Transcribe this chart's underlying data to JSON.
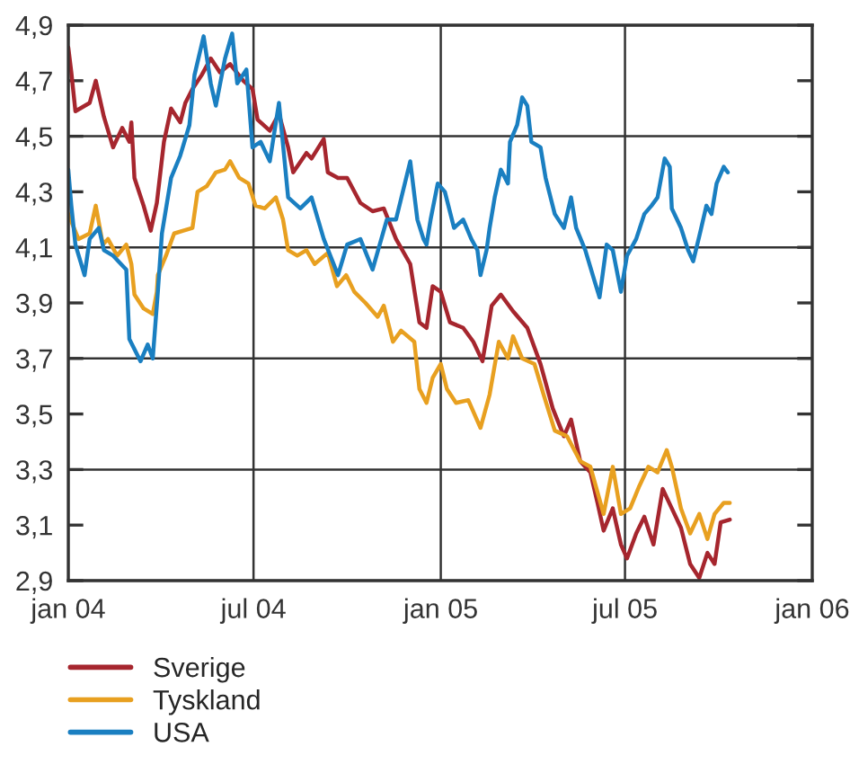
{
  "chart_data": {
    "type": "line",
    "xlim": [
      "2004-01-01",
      "2006-01-01"
    ],
    "xticks": [
      {
        "value": "2004-01-01",
        "label": "jan 04"
      },
      {
        "value": "2004-07-01",
        "label": "jul 04"
      },
      {
        "value": "2005-01-01",
        "label": "jan 05"
      },
      {
        "value": "2005-07-01",
        "label": "jul 05"
      },
      {
        "value": "2006-01-01",
        "label": "jan 06"
      }
    ],
    "ylim": [
      2.9,
      4.9
    ],
    "yticks": [
      {
        "value": 2.9,
        "label": "2,9"
      },
      {
        "value": 3.1,
        "label": "3,1"
      },
      {
        "value": 3.3,
        "label": "3,3"
      },
      {
        "value": 3.5,
        "label": "3,5"
      },
      {
        "value": 3.7,
        "label": "3,7"
      },
      {
        "value": 3.9,
        "label": "3,9"
      },
      {
        "value": 4.1,
        "label": "4,1"
      },
      {
        "value": 4.3,
        "label": "4,3"
      },
      {
        "value": 4.5,
        "label": "4,5"
      },
      {
        "value": 4.7,
        "label": "4,7"
      },
      {
        "value": 4.9,
        "label": "4,9"
      }
    ],
    "grid": true,
    "legend": "bottom left",
    "marker": "none",
    "line_style": "solid",
    "series": [
      {
        "name": "Sverige",
        "color": "#a6262e",
        "x": [
          "2004-01-01",
          "2004-01-04",
          "2004-01-08",
          "2004-01-22",
          "2004-01-28",
          "2004-02-05",
          "2004-02-14",
          "2004-02-23",
          "2004-03-01",
          "2004-03-03",
          "2004-03-06",
          "2004-03-15",
          "2004-03-22",
          "2004-03-28",
          "2004-04-04",
          "2004-04-11",
          "2004-04-20",
          "2004-04-25",
          "2004-05-02",
          "2004-05-11",
          "2004-05-20",
          "2004-05-29",
          "2004-06-08",
          "2004-06-21",
          "2004-06-30",
          "2004-07-05",
          "2004-07-17",
          "2004-07-26",
          "2004-08-04",
          "2004-08-09",
          "2004-08-22",
          "2004-08-27",
          "2004-09-08",
          "2004-09-12",
          "2004-09-22",
          "2004-10-01",
          "2004-10-14",
          "2004-10-26",
          "2004-11-06",
          "2004-11-18",
          "2004-12-02",
          "2004-12-11",
          "2004-12-18",
          "2004-12-24",
          "2005-01-01",
          "2005-01-10",
          "2005-01-23",
          "2005-02-02",
          "2005-02-11",
          "2005-02-20",
          "2005-03-01",
          "2005-03-13",
          "2005-03-27",
          "2005-04-09",
          "2005-04-21",
          "2005-05-02",
          "2005-05-09",
          "2005-05-18",
          "2005-05-28",
          "2005-06-04",
          "2005-06-10",
          "2005-06-19",
          "2005-06-27",
          "2005-07-03",
          "2005-07-12",
          "2005-07-20",
          "2005-07-29",
          "2005-08-07",
          "2005-08-16",
          "2005-08-25",
          "2005-09-03",
          "2005-09-12",
          "2005-09-20",
          "2005-09-27",
          "2005-10-03",
          "2005-10-12"
        ],
        "values": [
          4.82,
          4.73,
          4.59,
          4.62,
          4.7,
          4.57,
          4.46,
          4.53,
          4.48,
          4.55,
          4.35,
          4.25,
          4.16,
          4.26,
          4.48,
          4.6,
          4.55,
          4.62,
          4.67,
          4.72,
          4.78,
          4.73,
          4.76,
          4.7,
          4.67,
          4.56,
          4.52,
          4.58,
          4.46,
          4.37,
          4.44,
          4.42,
          4.49,
          4.37,
          4.35,
          4.35,
          4.26,
          4.23,
          4.24,
          4.13,
          4.04,
          3.83,
          3.81,
          3.96,
          3.94,
          3.83,
          3.81,
          3.76,
          3.69,
          3.89,
          3.93,
          3.87,
          3.81,
          3.68,
          3.52,
          3.42,
          3.48,
          3.33,
          3.29,
          3.18,
          3.08,
          3.16,
          3.03,
          2.98,
          3.07,
          3.13,
          3.03,
          3.23,
          3.16,
          3.09,
          2.96,
          2.91,
          3.0,
          2.96,
          3.11,
          3.12
        ]
      },
      {
        "name": "Tyskland",
        "color": "#e8a020",
        "x": [
          "2004-01-01",
          "2004-01-11",
          "2004-01-22",
          "2004-01-28",
          "2004-02-04",
          "2004-02-09",
          "2004-02-18",
          "2004-02-27",
          "2004-03-03",
          "2004-03-06",
          "2004-03-15",
          "2004-03-24",
          "2004-03-28",
          "2004-03-29",
          "2004-04-06",
          "2004-04-14",
          "2004-04-23",
          "2004-05-02",
          "2004-05-07",
          "2004-05-16",
          "2004-05-25",
          "2004-06-03",
          "2004-06-08",
          "2004-06-17",
          "2004-06-26",
          "2004-07-03",
          "2004-07-12",
          "2004-07-23",
          "2004-07-30",
          "2004-08-04",
          "2004-08-13",
          "2004-08-22",
          "2004-08-30",
          "2004-09-12",
          "2004-09-21",
          "2004-09-30",
          "2004-10-08",
          "2004-10-19",
          "2004-10-31",
          "2004-11-06",
          "2004-11-15",
          "2004-11-23",
          "2004-12-06",
          "2004-12-11",
          "2004-12-18",
          "2004-12-24",
          "2005-01-01",
          "2005-01-07",
          "2005-01-16",
          "2005-01-28",
          "2005-02-09",
          "2005-02-18",
          "2005-02-27",
          "2005-03-08",
          "2005-03-13",
          "2005-03-22",
          "2005-04-03",
          "2005-04-12",
          "2005-04-23",
          "2005-05-05",
          "2005-05-18",
          "2005-05-28",
          "2005-06-10",
          "2005-06-19",
          "2005-06-27",
          "2005-07-06",
          "2005-07-15",
          "2005-07-24",
          "2005-08-02",
          "2005-08-11",
          "2005-08-16",
          "2005-08-25",
          "2005-09-03",
          "2005-09-12",
          "2005-09-20",
          "2005-09-27",
          "2005-10-06",
          "2005-10-12"
        ],
        "values": [
          4.22,
          4.13,
          4.15,
          4.25,
          4.11,
          4.13,
          4.07,
          4.11,
          4.04,
          3.93,
          3.88,
          3.86,
          3.94,
          4.0,
          4.07,
          4.15,
          4.16,
          4.17,
          4.3,
          4.32,
          4.37,
          4.38,
          4.41,
          4.35,
          4.33,
          4.25,
          4.24,
          4.28,
          4.2,
          4.09,
          4.07,
          4.09,
          4.04,
          4.08,
          3.96,
          4.0,
          3.94,
          3.9,
          3.85,
          3.89,
          3.76,
          3.8,
          3.76,
          3.59,
          3.54,
          3.63,
          3.68,
          3.59,
          3.54,
          3.55,
          3.45,
          3.57,
          3.76,
          3.7,
          3.78,
          3.7,
          3.68,
          3.57,
          3.44,
          3.42,
          3.33,
          3.31,
          3.14,
          3.31,
          3.14,
          3.16,
          3.24,
          3.31,
          3.29,
          3.37,
          3.31,
          3.16,
          3.07,
          3.14,
          3.05,
          3.14,
          3.18,
          3.18
        ]
      },
      {
        "name": "USA",
        "color": "#1a7fc1",
        "x": [
          "2004-01-01",
          "2004-01-04",
          "2004-01-08",
          "2004-01-17",
          "2004-01-22",
          "2004-01-31",
          "2004-02-05",
          "2004-02-14",
          "2004-02-27",
          "2004-03-01",
          "2004-03-12",
          "2004-03-19",
          "2004-03-24",
          "2004-03-29",
          "2004-04-02",
          "2004-04-11",
          "2004-04-20",
          "2004-04-29",
          "2004-05-04",
          "2004-05-13",
          "2004-05-20",
          "2004-05-25",
          "2004-06-03",
          "2004-06-10",
          "2004-06-15",
          "2004-06-24",
          "2004-06-30",
          "2004-07-08",
          "2004-07-17",
          "2004-07-26",
          "2004-08-04",
          "2004-08-16",
          "2004-08-27",
          "2004-09-08",
          "2004-09-22",
          "2004-10-01",
          "2004-10-14",
          "2004-10-26",
          "2004-11-09",
          "2004-11-18",
          "2004-12-02",
          "2004-12-09",
          "2004-12-15",
          "2004-12-18",
          "2004-12-22",
          "2004-12-29",
          "2005-01-05",
          "2005-01-14",
          "2005-01-23",
          "2005-01-31",
          "2005-02-06",
          "2005-02-09",
          "2005-02-15",
          "2005-02-18",
          "2005-02-23",
          "2005-03-01",
          "2005-03-08",
          "2005-03-10",
          "2005-03-17",
          "2005-03-22",
          "2005-03-27",
          "2005-03-31",
          "2005-04-09",
          "2005-04-14",
          "2005-04-23",
          "2005-05-02",
          "2005-05-09",
          "2005-05-14",
          "2005-05-23",
          "2005-06-01",
          "2005-06-06",
          "2005-06-13",
          "2005-06-19",
          "2005-06-27",
          "2005-07-03",
          "2005-07-12",
          "2005-07-20",
          "2005-07-27",
          "2005-08-02",
          "2005-08-09",
          "2005-08-14",
          "2005-08-16",
          "2005-08-25",
          "2005-09-01",
          "2005-09-06",
          "2005-09-12",
          "2005-09-19",
          "2005-09-24",
          "2005-09-29",
          "2005-10-06",
          "2005-10-10"
        ],
        "values": [
          4.38,
          4.25,
          4.11,
          4.0,
          4.13,
          4.17,
          4.09,
          4.07,
          4.02,
          3.77,
          3.69,
          3.75,
          3.7,
          3.94,
          4.15,
          4.35,
          4.43,
          4.54,
          4.72,
          4.86,
          4.69,
          4.61,
          4.78,
          4.87,
          4.69,
          4.74,
          4.46,
          4.48,
          4.41,
          4.62,
          4.28,
          4.24,
          4.28,
          4.13,
          4.0,
          4.11,
          4.13,
          4.02,
          4.2,
          4.2,
          4.41,
          4.2,
          4.13,
          4.11,
          4.2,
          4.33,
          4.3,
          4.17,
          4.2,
          4.13,
          4.09,
          4.0,
          4.09,
          4.17,
          4.28,
          4.38,
          4.33,
          4.48,
          4.54,
          4.64,
          4.61,
          4.48,
          4.46,
          4.35,
          4.22,
          4.17,
          4.28,
          4.17,
          4.09,
          3.98,
          3.92,
          4.11,
          4.09,
          3.94,
          4.07,
          4.13,
          4.22,
          4.25,
          4.28,
          4.42,
          4.39,
          4.24,
          4.17,
          4.09,
          4.05,
          4.14,
          4.25,
          4.22,
          4.33,
          4.39,
          4.37
        ]
      }
    ]
  }
}
